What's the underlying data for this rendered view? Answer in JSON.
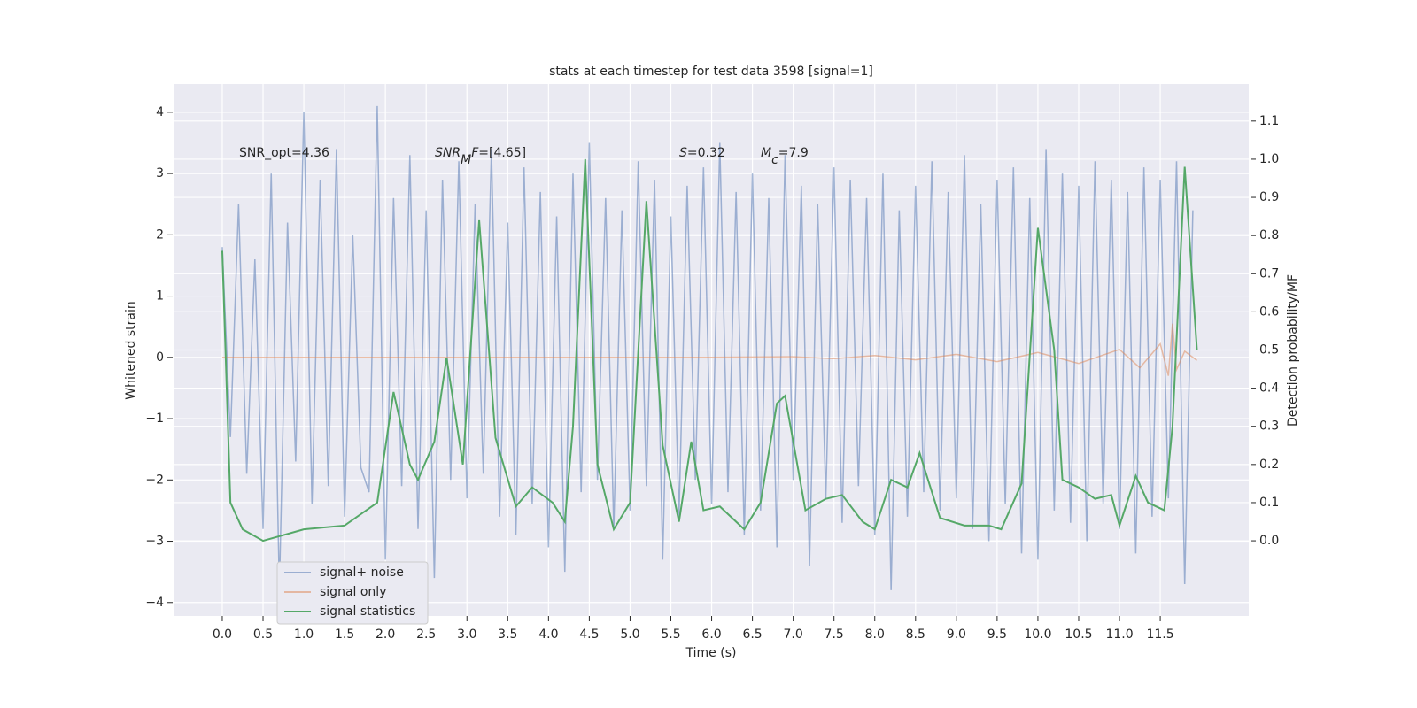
{
  "chart_data": {
    "type": "line",
    "title": "stats at each timestep for test data 3598 [signal=1]",
    "xlabel": "Time (s)",
    "ylabel": "Whitened strain",
    "y2label": "Detection probability/MF",
    "grid": true,
    "legend_position": "lower left",
    "xlim": [
      -0.586,
      12.585
    ],
    "ylim": [
      -4.22,
      4.46
    ],
    "y2lim": [
      -0.197,
      1.197
    ],
    "xticks": [
      {
        "value": 0,
        "label": "0.0"
      },
      0.5,
      {
        "value": 1,
        "label": "1.0"
      },
      1.5,
      {
        "value": 2,
        "label": "2.0"
      },
      2.5,
      {
        "value": 3,
        "label": "3.0"
      },
      3.5,
      {
        "value": 4,
        "label": "4.0"
      },
      4.5,
      {
        "value": 5,
        "label": "5.0"
      },
      5.5,
      {
        "value": 6,
        "label": "6.0"
      },
      6.5,
      {
        "value": 7,
        "label": "7.0"
      },
      7.5,
      {
        "value": 8,
        "label": "8.0"
      },
      8.5,
      {
        "value": 9,
        "label": "9.0"
      },
      9.5,
      {
        "value": 10,
        "label": "10.0"
      },
      10.5,
      {
        "value": 11,
        "label": "11.0"
      },
      11.5
    ],
    "yticks": [
      {
        "value": -4,
        "label": "−4"
      },
      {
        "value": -3,
        "label": "−3"
      },
      {
        "value": -2,
        "label": "−2"
      },
      {
        "value": -1,
        "label": "−1"
      },
      0,
      1,
      2,
      3,
      4
    ],
    "y2ticks": [
      {
        "value": 0,
        "label": "0.0"
      },
      0.1,
      0.2,
      0.3,
      0.4,
      0.5,
      0.6,
      0.7,
      0.8,
      0.9,
      {
        "value": 1,
        "label": "1.0"
      },
      1.1
    ],
    "annotations": [
      {
        "parts": [
          {
            "text": "SNR_opt=4.36",
            "style": "normal"
          }
        ]
      },
      {
        "parts": [
          {
            "text": "SNR",
            "style": "italic"
          },
          {
            "text": "M",
            "style": "italic-sub"
          },
          {
            "text": "F",
            "style": "italic"
          },
          {
            "text": "=[4.65]",
            "style": "normal"
          }
        ]
      },
      {
        "parts": [
          {
            "text": "S",
            "style": "italic"
          },
          {
            "text": "=0.32",
            "style": "normal"
          }
        ]
      },
      {
        "parts": [
          {
            "text": "M",
            "style": "italic"
          },
          {
            "text": "c",
            "style": "italic-sub"
          },
          {
            "text": "=7.9",
            "style": "normal"
          }
        ]
      }
    ],
    "series": [
      {
        "name": "signal+ noise",
        "color": "#4c72b0",
        "opacity": 0.5,
        "axis": "y",
        "x": [
          0,
          0.1,
          0.2,
          0.3,
          0.4,
          0.5,
          0.6,
          0.7,
          0.8,
          0.9,
          1,
          1.1,
          1.2,
          1.3,
          1.4,
          1.5,
          1.6,
          1.7,
          1.8,
          1.9,
          2,
          2.1,
          2.2,
          2.3,
          2.4,
          2.5,
          2.6,
          2.7,
          2.8,
          2.9,
          3,
          3.1,
          3.2,
          3.3,
          3.4,
          3.5,
          3.6,
          3.7,
          3.8,
          3.9,
          4,
          4.1,
          4.2,
          4.3,
          4.4,
          4.5,
          4.6,
          4.7,
          4.8,
          4.9,
          5,
          5.1,
          5.2,
          5.3,
          5.4,
          5.5,
          5.6,
          5.7,
          5.8,
          5.9,
          6,
          6.1,
          6.2,
          6.3,
          6.4,
          6.5,
          6.6,
          6.7,
          6.8,
          6.9,
          7,
          7.1,
          7.2,
          7.3,
          7.4,
          7.5,
          7.6,
          7.7,
          7.8,
          7.9,
          8,
          8.1,
          8.2,
          8.3,
          8.4,
          8.5,
          8.6,
          8.7,
          8.8,
          8.9,
          9,
          9.1,
          9.2,
          9.3,
          9.4,
          9.5,
          9.6,
          9.7,
          9.8,
          9.9,
          10,
          10.1,
          10.2,
          10.3,
          10.4,
          10.5,
          10.6,
          10.7,
          10.8,
          10.9,
          11,
          11.1,
          11.2,
          11.3,
          11.4,
          11.5,
          11.6,
          11.7,
          11.8,
          11.9
        ],
        "values": [
          1.8,
          -1.3,
          2.5,
          -1.9,
          1.6,
          -2.8,
          3.0,
          -3.8,
          2.2,
          -1.7,
          4.0,
          -2.4,
          2.9,
          -2.1,
          3.4,
          -2.6,
          2.0,
          -1.8,
          -2.2,
          4.1,
          -3.3,
          2.6,
          -2.1,
          3.3,
          -2.8,
          2.4,
          -3.6,
          2.9,
          -2.0,
          3.2,
          -2.3,
          2.5,
          -1.9,
          3.4,
          -2.6,
          2.2,
          -2.9,
          3.1,
          -2.4,
          2.7,
          -3.1,
          2.3,
          -3.5,
          3.0,
          -2.2,
          3.5,
          -2.0,
          2.6,
          -2.8,
          2.4,
          -2.5,
          3.2,
          -2.1,
          2.9,
          -3.3,
          2.3,
          -2.6,
          2.8,
          -2.0,
          3.1,
          -2.4,
          3.5,
          -2.2,
          2.7,
          -2.9,
          3.0,
          -2.5,
          2.6,
          -3.1,
          3.3,
          -2.0,
          2.8,
          -3.4,
          2.5,
          -2.3,
          3.1,
          -2.7,
          2.9,
          -2.1,
          2.6,
          -2.9,
          3.0,
          -3.8,
          2.4,
          -2.6,
          2.8,
          -2.2,
          3.2,
          -2.5,
          2.7,
          -2.3,
          3.3,
          -2.8,
          2.5,
          -3.0,
          2.9,
          -2.4,
          3.1,
          -3.2,
          2.6,
          -3.3,
          3.4,
          -2.5,
          3.0,
          -2.7,
          2.8,
          -3.0,
          3.2,
          -2.4,
          2.9,
          -2.8,
          2.7,
          -3.2,
          3.1,
          -2.6,
          2.9,
          -2.3,
          3.2,
          -3.7,
          2.4
        ]
      },
      {
        "name": "signal only",
        "color": "#dd8452",
        "opacity": 0.5,
        "axis": "y",
        "x": [
          0,
          1,
          2,
          3,
          4,
          5,
          6,
          7,
          7.5,
          8,
          8.5,
          9,
          9.5,
          10,
          10.5,
          11,
          11.25,
          11.5,
          11.6,
          11.65,
          11.7,
          11.8,
          11.95
        ],
        "values": [
          0,
          0,
          0,
          0,
          0,
          0,
          0,
          0.01,
          -0.02,
          0.03,
          -0.04,
          0.05,
          -0.07,
          0.08,
          -0.1,
          0.13,
          -0.17,
          0.22,
          -0.3,
          0.55,
          -0.2,
          0.1,
          -0.05
        ]
      },
      {
        "name": "signal statistics",
        "color": "#55a868",
        "opacity": 1,
        "axis": "y2",
        "x": [
          0,
          0.1,
          0.25,
          0.5,
          1.0,
          1.5,
          1.9,
          2.1,
          2.3,
          2.4,
          2.6,
          2.75,
          2.95,
          3.15,
          3.35,
          3.6,
          3.8,
          4.05,
          4.2,
          4.3,
          4.45,
          4.6,
          4.8,
          5.0,
          5.2,
          5.4,
          5.6,
          5.75,
          5.9,
          6.1,
          6.4,
          6.6,
          6.8,
          6.9,
          7.15,
          7.4,
          7.6,
          7.85,
          8.0,
          8.2,
          8.4,
          8.55,
          8.8,
          9.1,
          9.4,
          9.55,
          9.8,
          10.0,
          10.2,
          10.3,
          10.5,
          10.7,
          10.9,
          11.0,
          11.2,
          11.35,
          11.55,
          11.65,
          11.8,
          11.95
        ],
        "values": [
          0.76,
          0.1,
          0.03,
          0.0,
          0.03,
          0.04,
          0.1,
          0.39,
          0.2,
          0.16,
          0.26,
          0.48,
          0.2,
          0.84,
          0.27,
          0.09,
          0.14,
          0.1,
          0.05,
          0.3,
          1.0,
          0.2,
          0.03,
          0.1,
          0.89,
          0.25,
          0.05,
          0.26,
          0.08,
          0.09,
          0.03,
          0.1,
          0.36,
          0.38,
          0.08,
          0.11,
          0.12,
          0.05,
          0.03,
          0.16,
          0.14,
          0.23,
          0.06,
          0.04,
          0.04,
          0.03,
          0.15,
          0.82,
          0.5,
          0.16,
          0.14,
          0.11,
          0.12,
          0.04,
          0.17,
          0.1,
          0.08,
          0.3,
          0.98,
          0.5
        ]
      }
    ]
  }
}
